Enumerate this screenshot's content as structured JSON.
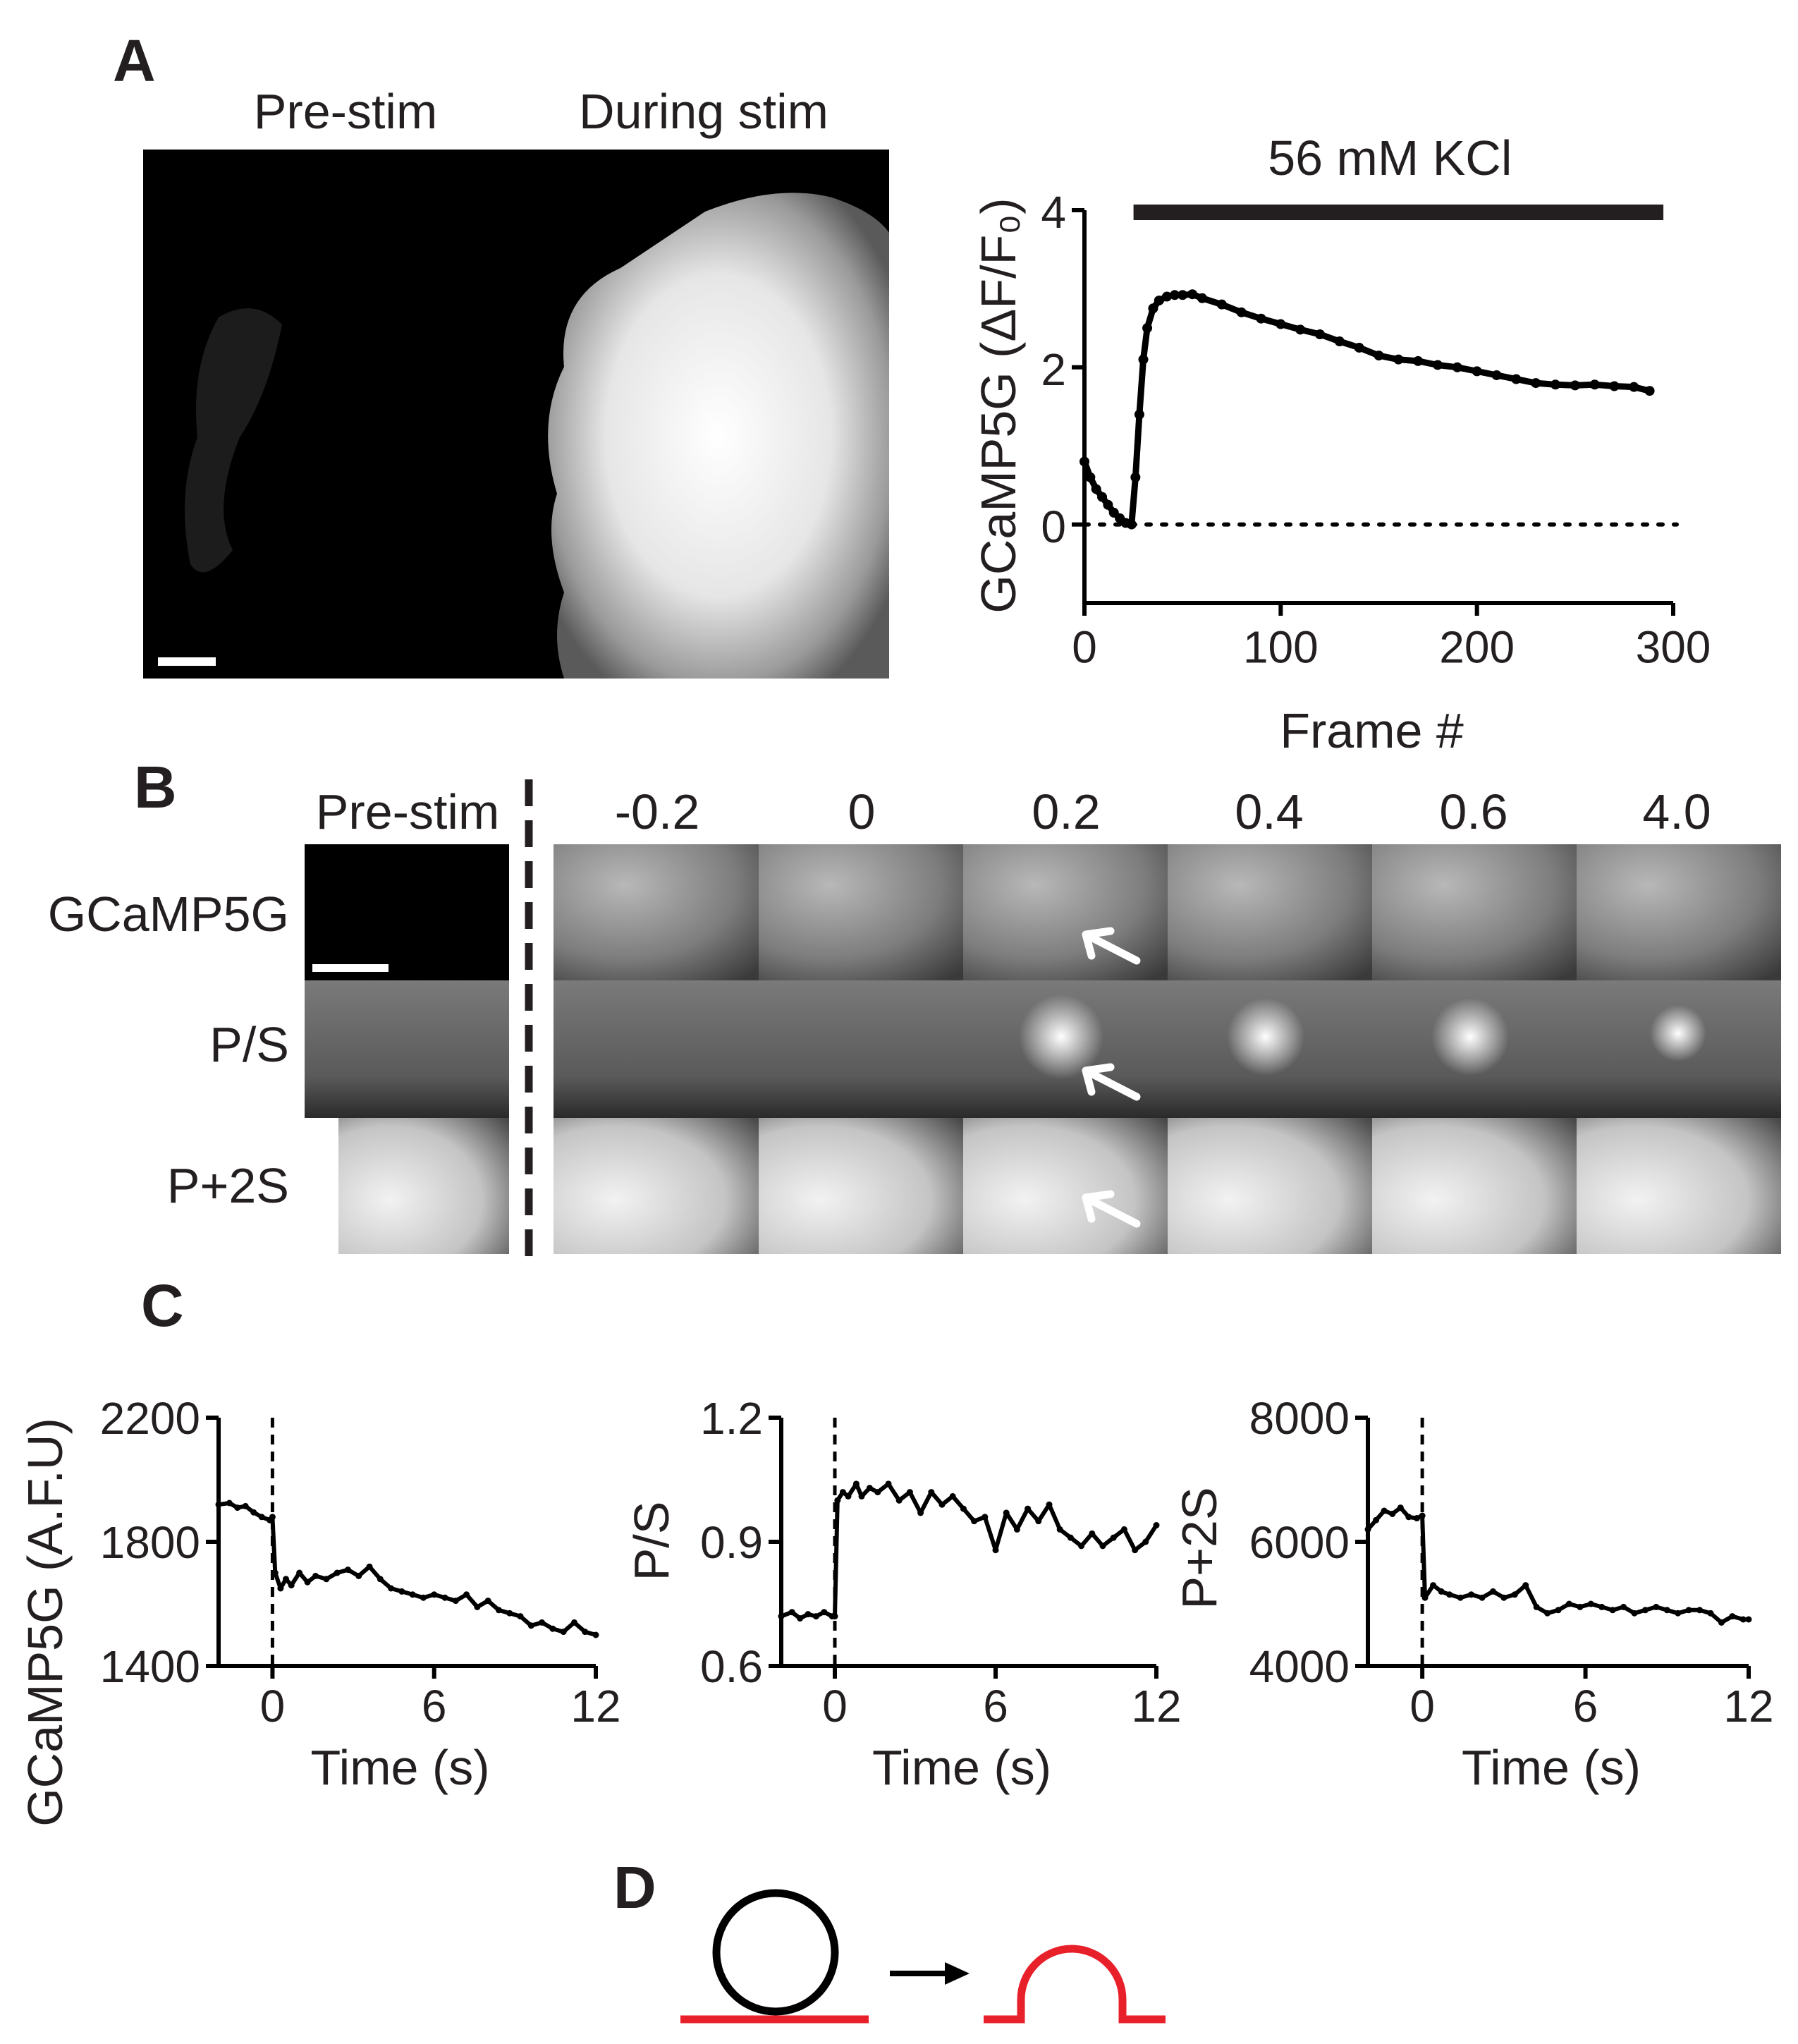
{
  "panels": {
    "A": {
      "letter": "A",
      "image_titles": [
        "Pre-stim",
        "During stim"
      ],
      "bar_label": "56 mM KCl"
    },
    "B": {
      "letter": "B",
      "column_headers": [
        "Pre-stim",
        "-0.2",
        "0",
        "0.2",
        "0.4",
        "0.6",
        "4.0"
      ],
      "row_labels": [
        "GCaMP5G",
        "P/S",
        "P+2S"
      ]
    },
    "C": {
      "letter": "C"
    },
    "D": {
      "letter": "D"
    }
  },
  "colors": {
    "ink": "#000000",
    "membrane_red": "#e8202a",
    "image_bg": "#000000"
  },
  "chart_data": [
    {
      "id": "A-trace",
      "type": "line",
      "xlabel": "Frame #",
      "ylabel": "GCaMP5G (ΔF/F₀)",
      "xlim": [
        0,
        300
      ],
      "ylim": [
        -1,
        4
      ],
      "xticks": [
        0,
        100,
        200,
        300
      ],
      "yticks": [
        0,
        2,
        4
      ],
      "baseline_dotted_y": 0,
      "stimulus_bar": {
        "label": "56 mM KCl",
        "x": [
          25,
          295
        ],
        "y": 4.0
      },
      "points": [
        [
          0,
          0.8
        ],
        [
          3,
          0.6
        ],
        [
          6,
          0.45
        ],
        [
          9,
          0.35
        ],
        [
          12,
          0.25
        ],
        [
          15,
          0.15
        ],
        [
          18,
          0.08
        ],
        [
          21,
          0.02
        ],
        [
          24,
          0
        ],
        [
          26,
          0.6
        ],
        [
          28,
          1.4
        ],
        [
          30,
          2.1
        ],
        [
          32,
          2.5
        ],
        [
          35,
          2.75
        ],
        [
          38,
          2.85
        ],
        [
          42,
          2.9
        ],
        [
          46,
          2.92
        ],
        [
          50,
          2.92
        ],
        [
          55,
          2.93
        ],
        [
          60,
          2.88
        ],
        [
          70,
          2.8
        ],
        [
          80,
          2.7
        ],
        [
          90,
          2.62
        ],
        [
          100,
          2.55
        ],
        [
          110,
          2.48
        ],
        [
          120,
          2.42
        ],
        [
          130,
          2.33
        ],
        [
          140,
          2.25
        ],
        [
          150,
          2.15
        ],
        [
          160,
          2.1
        ],
        [
          170,
          2.08
        ],
        [
          180,
          2.03
        ],
        [
          190,
          2.0
        ],
        [
          200,
          1.95
        ],
        [
          210,
          1.9
        ],
        [
          220,
          1.85
        ],
        [
          230,
          1.8
        ],
        [
          240,
          1.78
        ],
        [
          250,
          1.77
        ],
        [
          260,
          1.78
        ],
        [
          270,
          1.76
        ],
        [
          280,
          1.75
        ],
        [
          288,
          1.7
        ]
      ]
    },
    {
      "id": "C-gcamp",
      "type": "line",
      "xlabel": "Time (s)",
      "ylabel": "GCaMP5G (A.F.U)",
      "xlim": [
        -2,
        12
      ],
      "ylim": [
        1400,
        2200
      ],
      "xticks": [
        0,
        6,
        12
      ],
      "yticks": [
        1400,
        1800,
        2200
      ],
      "stim_line_x": 0,
      "points": [
        [
          -2,
          1920
        ],
        [
          -1.6,
          1925
        ],
        [
          -1.3,
          1910
        ],
        [
          -1,
          1915
        ],
        [
          -0.7,
          1895
        ],
        [
          -0.4,
          1880
        ],
        [
          -0.1,
          1870
        ],
        [
          0,
          1880
        ],
        [
          0.1,
          1700
        ],
        [
          0.3,
          1650
        ],
        [
          0.5,
          1680
        ],
        [
          0.7,
          1660
        ],
        [
          1,
          1700
        ],
        [
          1.3,
          1670
        ],
        [
          1.6,
          1690
        ],
        [
          2,
          1680
        ],
        [
          2.4,
          1700
        ],
        [
          2.8,
          1710
        ],
        [
          3.2,
          1690
        ],
        [
          3.6,
          1720
        ],
        [
          4,
          1680
        ],
        [
          4.4,
          1650
        ],
        [
          4.8,
          1640
        ],
        [
          5.2,
          1630
        ],
        [
          5.6,
          1620
        ],
        [
          6,
          1630
        ],
        [
          6.4,
          1620
        ],
        [
          6.8,
          1610
        ],
        [
          7.2,
          1630
        ],
        [
          7.6,
          1590
        ],
        [
          8,
          1610
        ],
        [
          8.4,
          1580
        ],
        [
          8.8,
          1570
        ],
        [
          9.2,
          1560
        ],
        [
          9.6,
          1530
        ],
        [
          10,
          1540
        ],
        [
          10.4,
          1520
        ],
        [
          10.8,
          1510
        ],
        [
          11.2,
          1540
        ],
        [
          11.6,
          1510
        ],
        [
          12,
          1500
        ]
      ]
    },
    {
      "id": "C-ps",
      "type": "line",
      "xlabel": "Time (s)",
      "ylabel": "P/S",
      "xlim": [
        -2,
        12
      ],
      "ylim": [
        0.6,
        1.2
      ],
      "xticks": [
        0,
        6,
        12
      ],
      "yticks": [
        0.6,
        0.9,
        1.2
      ],
      "stim_line_x": 0,
      "points": [
        [
          -2,
          0.72
        ],
        [
          -1.6,
          0.73
        ],
        [
          -1.3,
          0.715
        ],
        [
          -1,
          0.725
        ],
        [
          -0.7,
          0.72
        ],
        [
          -0.4,
          0.73
        ],
        [
          -0.1,
          0.72
        ],
        [
          0,
          0.72
        ],
        [
          0.1,
          1.0
        ],
        [
          0.3,
          1.02
        ],
        [
          0.5,
          1.01
        ],
        [
          0.8,
          1.04
        ],
        [
          1,
          1.01
        ],
        [
          1.3,
          1.03
        ],
        [
          1.6,
          1.02
        ],
        [
          2,
          1.04
        ],
        [
          2.4,
          1.0
        ],
        [
          2.8,
          1.02
        ],
        [
          3.2,
          0.97
        ],
        [
          3.6,
          1.02
        ],
        [
          4,
          0.99
        ],
        [
          4.4,
          1.01
        ],
        [
          4.8,
          0.98
        ],
        [
          5.2,
          0.95
        ],
        [
          5.6,
          0.96
        ],
        [
          6,
          0.88
        ],
        [
          6.4,
          0.97
        ],
        [
          6.8,
          0.93
        ],
        [
          7.2,
          0.98
        ],
        [
          7.6,
          0.95
        ],
        [
          8,
          0.99
        ],
        [
          8.4,
          0.93
        ],
        [
          8.8,
          0.91
        ],
        [
          9.2,
          0.89
        ],
        [
          9.6,
          0.92
        ],
        [
          10,
          0.89
        ],
        [
          10.4,
          0.91
        ],
        [
          10.8,
          0.93
        ],
        [
          11.2,
          0.88
        ],
        [
          11.6,
          0.9
        ],
        [
          12,
          0.94
        ]
      ]
    },
    {
      "id": "C-p2s",
      "type": "line",
      "xlabel": "Time (s)",
      "ylabel": "P+2S",
      "xlim": [
        -2,
        12
      ],
      "ylim": [
        4000,
        8000
      ],
      "xticks": [
        0,
        6,
        12
      ],
      "yticks": [
        4000,
        6000,
        8000
      ],
      "stim_line_x": 0,
      "points": [
        [
          -2,
          6200
        ],
        [
          -1.7,
          6350
        ],
        [
          -1.4,
          6500
        ],
        [
          -1.1,
          6450
        ],
        [
          -0.8,
          6550
        ],
        [
          -0.5,
          6400
        ],
        [
          -0.2,
          6380
        ],
        [
          0,
          6420
        ],
        [
          0.1,
          5100
        ],
        [
          0.4,
          5300
        ],
        [
          0.7,
          5200
        ],
        [
          1,
          5150
        ],
        [
          1.4,
          5100
        ],
        [
          1.8,
          5150
        ],
        [
          2.2,
          5100
        ],
        [
          2.6,
          5200
        ],
        [
          3,
          5100
        ],
        [
          3.4,
          5150
        ],
        [
          3.8,
          5300
        ],
        [
          4.2,
          4950
        ],
        [
          4.6,
          4850
        ],
        [
          5,
          4900
        ],
        [
          5.4,
          5000
        ],
        [
          5.8,
          4950
        ],
        [
          6.2,
          5000
        ],
        [
          6.6,
          4950
        ],
        [
          7,
          4900
        ],
        [
          7.4,
          4950
        ],
        [
          7.8,
          4850
        ],
        [
          8.2,
          4900
        ],
        [
          8.6,
          4950
        ],
        [
          9,
          4900
        ],
        [
          9.4,
          4850
        ],
        [
          9.8,
          4900
        ],
        [
          10.2,
          4900
        ],
        [
          10.6,
          4850
        ],
        [
          11,
          4700
        ],
        [
          11.4,
          4800
        ],
        [
          11.8,
          4750
        ],
        [
          12,
          4750
        ]
      ]
    }
  ]
}
